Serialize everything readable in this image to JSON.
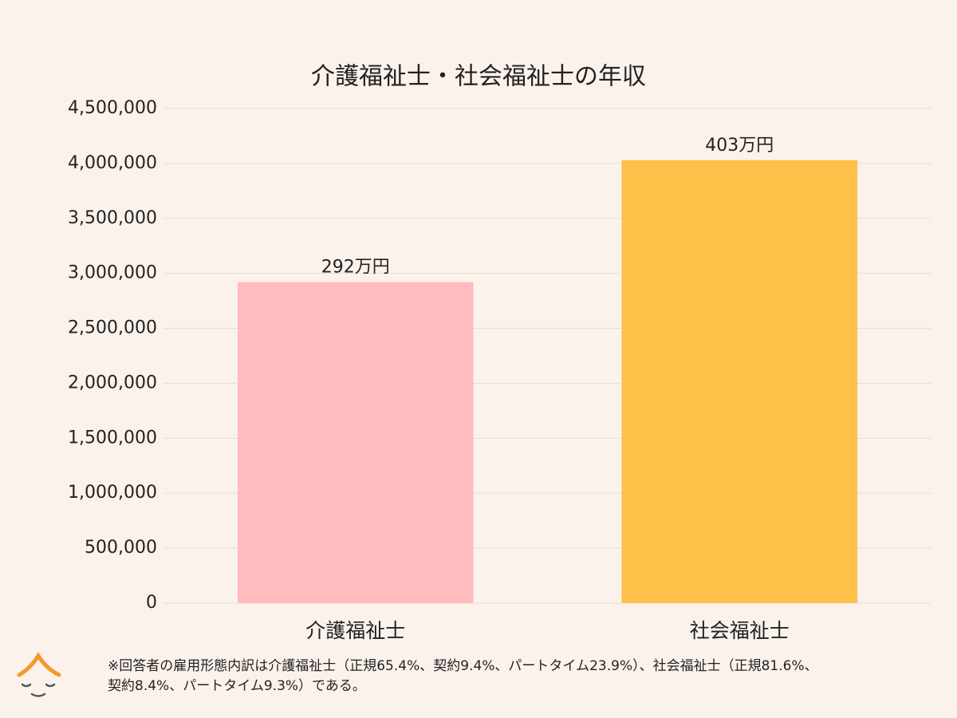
{
  "chart_data": {
    "type": "bar",
    "title": "介護福祉士・社会福祉士の年収",
    "categories": [
      "介護福祉士",
      "社会福祉士"
    ],
    "values": [
      2920000,
      4030000
    ],
    "value_labels": [
      "292万円",
      "403万円"
    ],
    "colors": [
      "#ffbbbd",
      "#ffc04a"
    ],
    "ylim": [
      0,
      4500000
    ],
    "yticks": [
      0,
      {
        "value": 500000,
        "label": "500,000"
      },
      {
        "value": 1000000,
        "label": "1,000,000"
      },
      {
        "value": 1500000,
        "label": "1,500,000"
      },
      {
        "value": 2000000,
        "label": "2,000,000"
      },
      {
        "value": 2500000,
        "label": "2,500,000"
      },
      {
        "value": 3000000,
        "label": "3,000,000"
      },
      {
        "value": 3500000,
        "label": "3,500,000"
      },
      {
        "value": 4000000,
        "label": "4,000,000"
      },
      {
        "value": 4500000,
        "label": "4,500,000"
      }
    ],
    "grid": true,
    "note": [
      "※回答者の雇用形態内訳は介護福祉士（正規65.4%、契約9.4%、パートタイム23.9%）、社会福祉士（正規81.6%、",
      "契約8.4%、パートタイム9.3%）である。"
    ]
  }
}
